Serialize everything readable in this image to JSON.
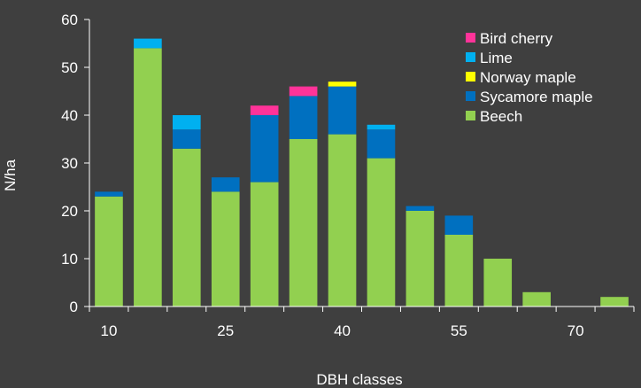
{
  "chart_data": {
    "type": "bar",
    "stacked": true,
    "xlabel": "DBH classes",
    "ylabel": "N/ha",
    "ylim": [
      0,
      60
    ],
    "y_ticks": [
      0,
      10,
      20,
      30,
      40,
      50,
      60
    ],
    "categories": [
      "10",
      "15",
      "20",
      "25",
      "30",
      "35",
      "40",
      "45",
      "50",
      "55",
      "60",
      "65",
      "70",
      "75"
    ],
    "x_tick_labels": [
      "10",
      "25",
      "40",
      "55",
      "70"
    ],
    "grid": false,
    "legend_position": "top-right",
    "series": [
      {
        "name": "Beech",
        "color": "#92d050",
        "values": [
          23,
          54,
          33,
          24,
          26,
          35,
          36,
          31,
          20,
          15,
          10,
          3,
          0,
          2
        ]
      },
      {
        "name": "Sycamore maple",
        "color": "#0070c0",
        "values": [
          1,
          0,
          4,
          3,
          14,
          9,
          10,
          6,
          1,
          4,
          0,
          0,
          0,
          0
        ]
      },
      {
        "name": "Norway maple",
        "color": "#ffff00",
        "values": [
          0,
          0,
          0,
          0,
          0,
          0,
          1,
          0,
          0,
          0,
          0,
          0,
          0,
          0
        ]
      },
      {
        "name": "Lime",
        "color": "#00b0f0",
        "values": [
          0,
          2,
          3,
          0,
          0,
          0,
          0,
          1,
          0,
          0,
          0,
          0,
          0,
          0
        ]
      },
      {
        "name": "Bird cherry",
        "color": "#ff3399",
        "values": [
          0,
          0,
          0,
          0,
          2,
          2,
          0,
          0,
          0,
          0,
          0,
          0,
          0,
          0
        ]
      }
    ],
    "legend_order": [
      "Bird cherry",
      "Lime",
      "Norway maple",
      "Sycamore maple",
      "Beech"
    ]
  },
  "colors": {
    "background": "#3f3f3f",
    "axis": "#ffffff",
    "text": "#ffffff"
  }
}
